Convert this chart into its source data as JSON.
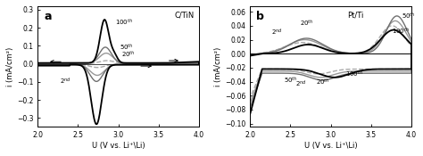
{
  "panel_a": {
    "title": "C/TiN",
    "label": "a",
    "ylim": [
      -0.35,
      0.32
    ],
    "yticks": [
      -0.3,
      -0.2,
      -0.1,
      0.0,
      0.1,
      0.2,
      0.3
    ],
    "xlim": [
      2.0,
      4.0
    ],
    "xticks": [
      2.0,
      2.5,
      3.0,
      3.5,
      4.0
    ],
    "ylabel": "i (mA/cm²)"
  },
  "panel_b": {
    "title": "Pt/Ti",
    "label": "b",
    "ylim": [
      -0.105,
      0.068
    ],
    "yticks": [
      -0.1,
      -0.08,
      -0.06,
      -0.04,
      -0.02,
      0.0,
      0.02,
      0.04,
      0.06
    ],
    "xlim": [
      2.0,
      4.0
    ],
    "xticks": [
      2.0,
      2.5,
      3.0,
      3.5,
      4.0
    ],
    "ylabel": "i (mA/cm²)"
  },
  "xlabel": "U (V vs. Li⁺\\Li)",
  "colors": {
    "100th": "#000000",
    "50th": "#707070",
    "20th": "#999999",
    "2nd": "#aaaaaa"
  },
  "linestyles": {
    "100th": "solid",
    "50th": "solid",
    "20th": "solid",
    "2nd": "dashed"
  },
  "linewidths": {
    "100th": 1.3,
    "50th": 1.0,
    "20th": 1.0,
    "2nd": 1.0
  }
}
